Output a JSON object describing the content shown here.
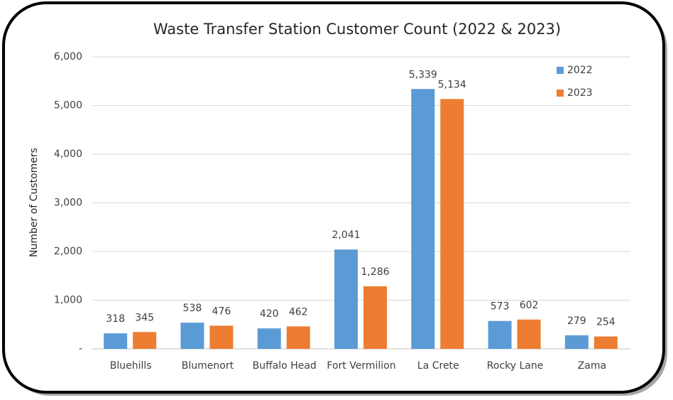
{
  "chart_data": {
    "type": "bar",
    "title": "Waste Transfer Station Customer Count (2022 & 2023)",
    "y_label": "Number of Customers",
    "categories": [
      "Bluehills",
      "Blumenort",
      "Buffalo Head",
      "Fort Vermilion",
      "La Crete",
      "Rocky Lane",
      "Zama"
    ],
    "series": [
      {
        "name": "2022",
        "color": "#5b9bd5",
        "values": [
          318,
          538,
          420,
          2041,
          5339,
          573,
          279
        ],
        "value_labels": [
          "318",
          "538",
          "420",
          "2,041",
          "5,339",
          "573",
          "279"
        ]
      },
      {
        "name": "2023",
        "color": "#ed7d31",
        "values": [
          345,
          476,
          462,
          1286,
          5134,
          602,
          254
        ],
        "value_labels": [
          "345",
          "476",
          "462",
          "1,286",
          "5,134",
          "602",
          "254"
        ]
      }
    ],
    "ylim": [
      0,
      6000
    ],
    "yticks": [
      {
        "value": 0,
        "label": "-"
      },
      {
        "value": 1000,
        "label": "1,000"
      },
      {
        "value": 2000,
        "label": "2,000"
      },
      {
        "value": 3000,
        "label": "3,000"
      },
      {
        "value": 4000,
        "label": "4,000"
      },
      {
        "value": 5000,
        "label": "5,000"
      },
      {
        "value": 6000,
        "label": "6,000"
      }
    ],
    "grid": true,
    "legend": "top-right"
  }
}
